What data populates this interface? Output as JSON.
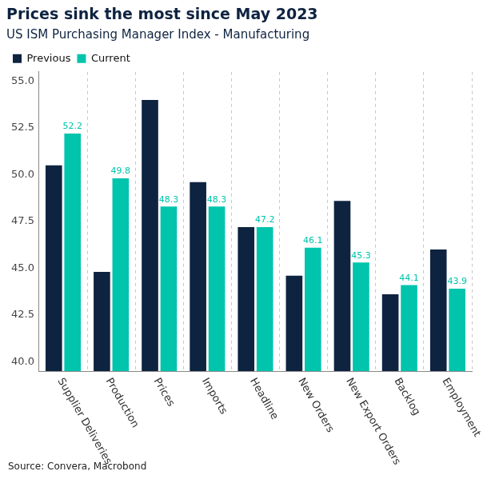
{
  "chart_data": {
    "type": "bar",
    "title": "Prices sink the most since May 2023",
    "subtitle": "US ISM Purchasing Manager Index - Manufacturing",
    "source": "Source: Convera, Macrobond",
    "categories": [
      "Supplier Deliveries",
      "Production",
      "Prices",
      "Imports",
      "Headline",
      "New Orders",
      "New Export Orders",
      "Backlog",
      "Employment"
    ],
    "series": [
      {
        "name": "Previous",
        "color": "#0e2340",
        "data_labels": false,
        "values": [
          50.5,
          44.8,
          54.0,
          49.6,
          47.2,
          44.6,
          48.6,
          43.6,
          46.0
        ]
      },
      {
        "name": "Current",
        "color": "#00c4ac",
        "data_labels": true,
        "values": [
          52.2,
          49.8,
          48.3,
          48.3,
          47.2,
          46.1,
          45.3,
          44.1,
          43.9
        ]
      }
    ],
    "ylim": [
      39.5,
      55.5
    ],
    "yticks": [
      {
        "value": 40,
        "label": "40.0"
      },
      42.5,
      {
        "value": 45,
        "label": "45.0"
      },
      47.5,
      {
        "value": 50,
        "label": "50.0"
      },
      52.5,
      {
        "value": 55,
        "label": "55.0"
      }
    ],
    "grid": true,
    "legend": "top-left"
  }
}
